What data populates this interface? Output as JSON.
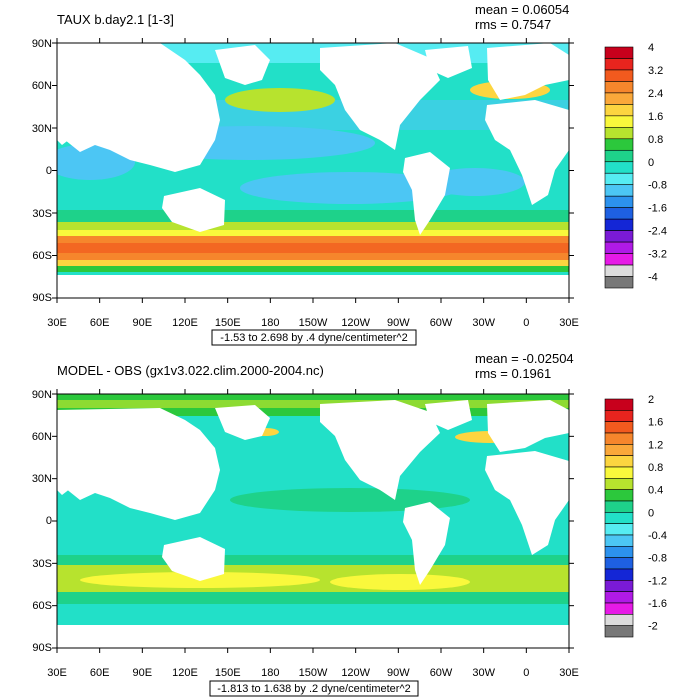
{
  "panels": [
    {
      "id": "top",
      "title": "TAUX b.day2.1 [1-3]",
      "mean_text": "mean = 0.06054",
      "rms_text": "rms = 0.7547",
      "range_text": "-1.53 to 2.698 by .4 dyne/centimeter^2",
      "colorbar_labels": [
        "4",
        "3.2",
        "2.4",
        "1.6",
        "0.8",
        "0",
        "-0.8",
        "-1.6",
        "-2.4",
        "-3.2",
        "-4"
      ],
      "colorbar_colors": [
        "#c8001c",
        "#e8241e",
        "#f25a1e",
        "#f6862c",
        "#faa83a",
        "#fcd540",
        "#f9f83c",
        "#b7e32e",
        "#2cc83c",
        "#1ed28a",
        "#22e0c8",
        "#56ecf2",
        "#4cc6f4",
        "#2c92ee",
        "#1e60e2",
        "#1426d6",
        "#7a1ad6",
        "#b01ae6",
        "#e61ae6",
        "#dcdcdc",
        "#787878"
      ]
    },
    {
      "id": "bottom",
      "title": "MODEL - OBS (gx1v3.022.clim.2000-2004.nc)",
      "mean_text": "mean = -0.02504",
      "rms_text": "rms = 0.1961",
      "range_text": "-1.813 to 1.638 by .2 dyne/centimeter^2",
      "colorbar_labels": [
        "2",
        "1.6",
        "1.2",
        "0.8",
        "0.4",
        "0",
        "-0.4",
        "-0.8",
        "-1.2",
        "-1.6",
        "-2"
      ],
      "colorbar_colors": [
        "#c8001c",
        "#e8241e",
        "#f25a1e",
        "#f6862c",
        "#faa83a",
        "#fcd540",
        "#f9f83c",
        "#b7e32e",
        "#2cc83c",
        "#1ed28a",
        "#22e0c8",
        "#56ecf2",
        "#4cc6f4",
        "#2c92ee",
        "#1e60e2",
        "#1426d6",
        "#7a1ad6",
        "#b01ae6",
        "#e61ae6",
        "#dcdcdc",
        "#787878"
      ]
    }
  ],
  "axes": {
    "lon_labels": [
      "30E",
      "60E",
      "90E",
      "120E",
      "150E",
      "180",
      "150W",
      "120W",
      "90W",
      "60W",
      "30W",
      "0",
      "30E"
    ],
    "lat_labels": [
      "90N",
      "60N",
      "30N",
      "0",
      "30S",
      "60S",
      "90S"
    ]
  },
  "colors": {
    "land": "#ffffff",
    "ocean_base": "#22e0c8"
  }
}
